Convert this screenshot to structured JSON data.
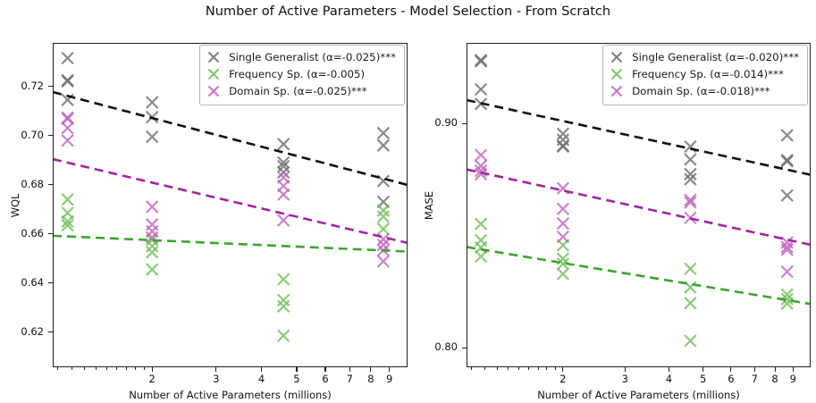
{
  "title": "Number of Active Parameters - Model Selection - From Scratch",
  "chart_data": [
    {
      "type": "scatter",
      "panel": "left",
      "xlabel": "Number of Active Parameters (millions)",
      "ylabel": "WQL",
      "xscale": "log",
      "xlim": [
        1.065,
        10.1
      ],
      "ylim": [
        0.6057,
        0.7377
      ],
      "grid": false,
      "legend_position": "upper right",
      "xticks": {
        "values": [
          2,
          3,
          4,
          5,
          6,
          7,
          8,
          9
        ],
        "labels": [
          "2",
          "3",
          "4",
          "5",
          "6",
          "7",
          "8",
          "9"
        ]
      },
      "minor_xticks": [
        1.1,
        1.2,
        1.3,
        1.4,
        1.5,
        1.6,
        1.7,
        1.8,
        1.9
      ],
      "yticks": {
        "values": [
          0.62,
          0.64,
          0.66,
          0.68,
          0.7,
          0.72
        ],
        "labels": [
          "0.62",
          "0.64",
          "0.66",
          "0.68",
          "0.70",
          "0.72"
        ]
      },
      "series": [
        {
          "name": "Single Generalist (α=-0.025)***",
          "marker": "x",
          "color": "#6d6d6d",
          "trend": {
            "color": "#111111",
            "style": "dashed",
            "y_start": 0.7177,
            "y_end": 0.6799
          },
          "points": [
            [
              1.17,
              0.7315
            ],
            [
              1.17,
              0.7225
            ],
            [
              1.17,
              0.7221
            ],
            [
              1.17,
              0.7145
            ],
            [
              2.0,
              0.7135
            ],
            [
              2.0,
              0.7075
            ],
            [
              2.0,
              0.6995
            ],
            [
              4.6,
              0.6965
            ],
            [
              4.6,
              0.689
            ],
            [
              4.6,
              0.6875
            ],
            [
              4.6,
              0.685
            ],
            [
              8.66,
              0.701
            ],
            [
              8.66,
              0.696
            ],
            [
              8.66,
              0.6815
            ],
            [
              8.66,
              0.673
            ]
          ]
        },
        {
          "name": "Frequency Sp. (α=-0.005)",
          "marker": "x",
          "color": "#6fbe59",
          "trend": {
            "color": "#3ca32f",
            "style": "dashed",
            "y_start": 0.6592,
            "y_end": 0.6528
          },
          "points": [
            [
              1.17,
              0.674
            ],
            [
              1.17,
              0.6685
            ],
            [
              1.17,
              0.665
            ],
            [
              1.17,
              0.6635
            ],
            [
              2.0,
              0.6575
            ],
            [
              2.0,
              0.655
            ],
            [
              2.0,
              0.6525
            ],
            [
              2.0,
              0.6455
            ],
            [
              4.6,
              0.6415
            ],
            [
              4.6,
              0.633
            ],
            [
              4.6,
              0.6305
            ],
            [
              4.6,
              0.6185
            ],
            [
              8.66,
              0.6695
            ],
            [
              8.66,
              0.667
            ],
            [
              8.66,
              0.662
            ]
          ]
        },
        {
          "name": "Domain Sp. (α=-0.025)***",
          "marker": "x",
          "color": "#bf63bf",
          "trend": {
            "color": "#a124a1",
            "style": "dashed",
            "y_start": 0.6904,
            "y_end": 0.6563
          },
          "points": [
            [
              1.17,
              0.7073
            ],
            [
              1.17,
              0.7068
            ],
            [
              1.17,
              0.7031
            ],
            [
              1.17,
              0.698
            ],
            [
              2.0,
              0.671
            ],
            [
              2.0,
              0.6638
            ],
            [
              2.0,
              0.661
            ],
            [
              2.0,
              0.6585
            ],
            [
              4.6,
              0.683
            ],
            [
              4.6,
              0.6795
            ],
            [
              4.6,
              0.676
            ],
            [
              4.6,
              0.6655
            ],
            [
              8.66,
              0.6578
            ],
            [
              8.66,
              0.6555
            ],
            [
              8.66,
              0.6533
            ],
            [
              8.66,
              0.6488
            ]
          ]
        }
      ]
    },
    {
      "type": "scatter",
      "panel": "right",
      "xlabel": "Number of Active Parameters (millions)",
      "ylabel": "MASE",
      "xscale": "log",
      "xlim": [
        1.065,
        10.1
      ],
      "ylim": [
        0.7914,
        0.936
      ],
      "grid": false,
      "legend_position": "upper right",
      "xticks": {
        "values": [
          2,
          3,
          4,
          5,
          6,
          7,
          8,
          9
        ],
        "labels": [
          "2",
          "3",
          "4",
          "5",
          "6",
          "7",
          "8",
          "9"
        ]
      },
      "minor_xticks": [
        1.1,
        1.2,
        1.3,
        1.4,
        1.5,
        1.6,
        1.7,
        1.8,
        1.9
      ],
      "yticks": {
        "values": [
          0.8,
          0.9
        ],
        "labels": [
          "0.80",
          "0.90"
        ]
      },
      "series": [
        {
          "name": "Single Generalist (α=-0.020)***",
          "marker": "x",
          "color": "#6d6d6d",
          "trend": {
            "color": "#111111",
            "style": "dashed",
            "y_start": 0.9105,
            "y_end": 0.8772
          },
          "points": [
            [
              1.17,
              0.9283
            ],
            [
              1.17,
              0.9278
            ],
            [
              1.17,
              0.9153
            ],
            [
              1.17,
              0.9088
            ],
            [
              2.0,
              0.8955
            ],
            [
              2.0,
              0.8928
            ],
            [
              2.0,
              0.8902
            ],
            [
              2.0,
              0.8898
            ],
            [
              4.6,
              0.8898
            ],
            [
              4.6,
              0.884
            ],
            [
              4.6,
              0.8775
            ],
            [
              4.6,
              0.8752
            ],
            [
              8.66,
              0.8948
            ],
            [
              8.66,
              0.8838
            ],
            [
              8.66,
              0.8832
            ],
            [
              8.66,
              0.868
            ]
          ]
        },
        {
          "name": "Frequency Sp. (α=-0.014)***",
          "marker": "x",
          "color": "#6fbe59",
          "trend": {
            "color": "#3ca32f",
            "style": "dashed",
            "y_start": 0.845,
            "y_end": 0.8196
          },
          "points": [
            [
              1.17,
              0.8553
            ],
            [
              1.17,
              0.848
            ],
            [
              1.17,
              0.8448
            ],
            [
              1.17,
              0.8408
            ],
            [
              2.0,
              0.8458
            ],
            [
              2.0,
              0.8398
            ],
            [
              2.0,
              0.8375
            ],
            [
              2.0,
              0.833
            ],
            [
              4.6,
              0.8353
            ],
            [
              4.6,
              0.827
            ],
            [
              4.6,
              0.82
            ],
            [
              4.6,
              0.8032
            ],
            [
              8.66,
              0.8238
            ],
            [
              8.66,
              0.8218
            ],
            [
              8.66,
              0.8198
            ]
          ]
        },
        {
          "name": "Domain Sp. (α=-0.018)***",
          "marker": "x",
          "color": "#bf63bf",
          "trend": {
            "color": "#a124a1",
            "style": "dashed",
            "y_start": 0.8796,
            "y_end": 0.846
          },
          "points": [
            [
              1.17,
              0.886
            ],
            [
              1.17,
              0.8812
            ],
            [
              1.17,
              0.879
            ],
            [
              1.17,
              0.8775
            ],
            [
              2.0,
              0.8712
            ],
            [
              2.0,
              0.862
            ],
            [
              2.0,
              0.8555
            ],
            [
              2.0,
              0.8495
            ],
            [
              4.6,
              0.866
            ],
            [
              4.6,
              0.8648
            ],
            [
              4.6,
              0.858
            ],
            [
              8.66,
              0.847
            ],
            [
              8.66,
              0.845
            ],
            [
              8.66,
              0.8438
            ],
            [
              8.66,
              0.834
            ]
          ]
        }
      ]
    }
  ]
}
